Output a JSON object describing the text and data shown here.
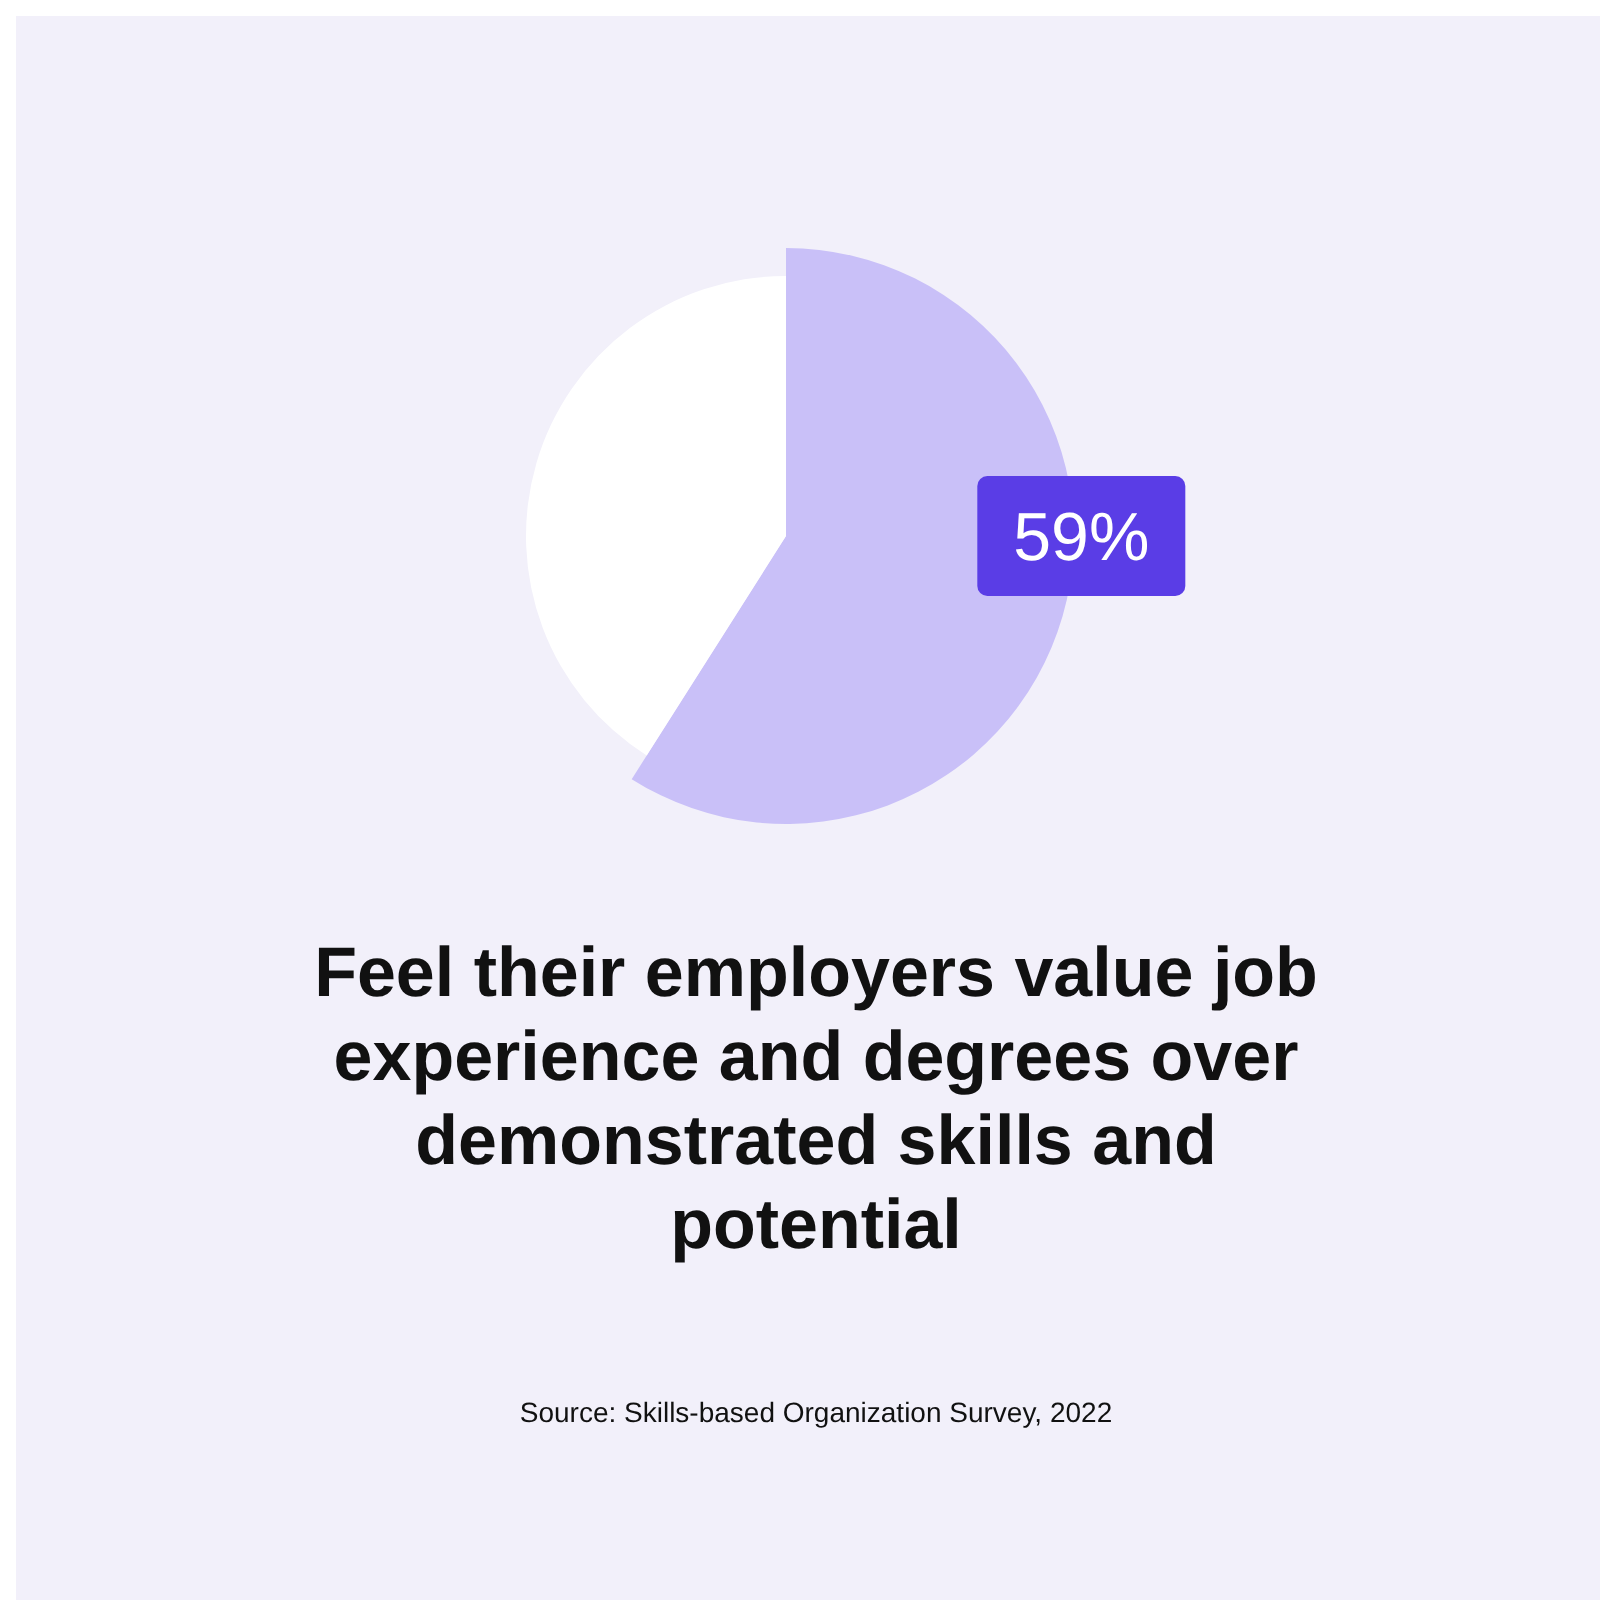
{
  "chart_data": {
    "type": "pie",
    "title": "Feel their employers value job experience and degrees over demonstrated skills and potential",
    "categories": [
      null,
      null
    ],
    "values": [
      59,
      41
    ],
    "colors": [
      "#c9c0f8",
      "#ffffff"
    ],
    "value_labels": [
      "59%",
      null
    ],
    "annotations": [
      "Source: Skills-based Organization Survey, 2022"
    ]
  }
}
